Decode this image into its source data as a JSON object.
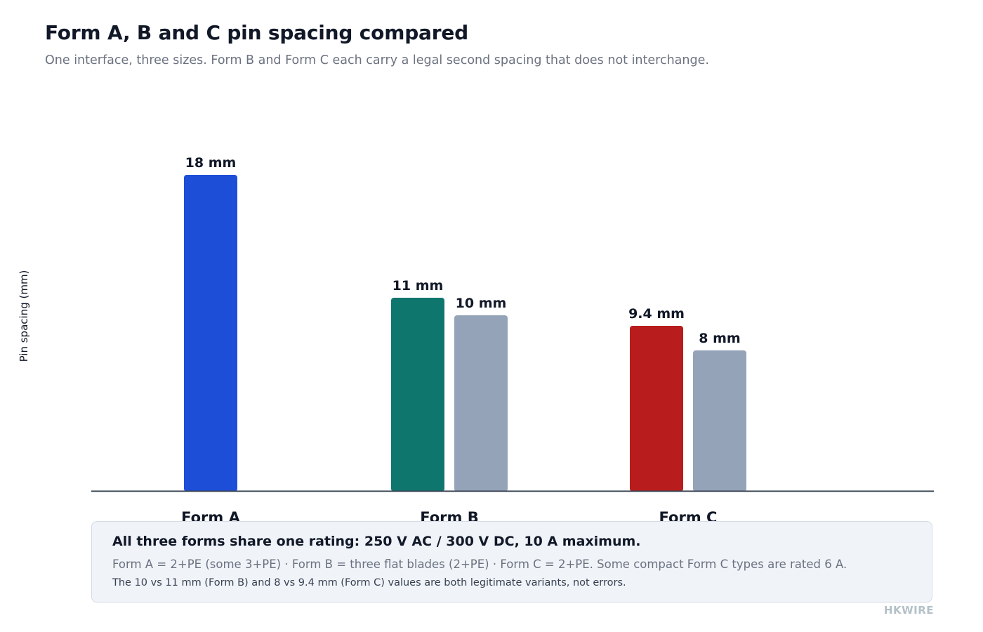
{
  "header": {
    "title": "Form A, B and C pin spacing compared",
    "subtitle": "One interface, three sizes. Form B and Form C each carry a legal second spacing that does not interchange."
  },
  "chart_data": {
    "type": "bar",
    "title": "Form A, B and C pin spacing compared",
    "subtitle": "One interface, three sizes. Form B and Form C each carry a legal second spacing that does not interchange.",
    "xlabel": "",
    "ylabel": "Pin spacing (mm)",
    "unit": "mm",
    "ylim": [
      0,
      20
    ],
    "grid": false,
    "categories": [
      "Form A",
      "Form B",
      "Form C"
    ],
    "groups": [
      {
        "category": "Form A",
        "bars": [
          {
            "value": 18,
            "label": "18 mm",
            "color": "#1d4ed8"
          }
        ]
      },
      {
        "category": "Form B",
        "bars": [
          {
            "value": 11,
            "label": "11 mm",
            "color": "#0f766e"
          },
          {
            "value": 10,
            "label": "10 mm",
            "color": "#94a3b8"
          }
        ]
      },
      {
        "category": "Form C",
        "bars": [
          {
            "value": 9.4,
            "label": "9.4 mm",
            "color": "#b91c1c"
          },
          {
            "value": 8,
            "label": "8 mm",
            "color": "#94a3b8"
          }
        ]
      }
    ]
  },
  "note": {
    "headline": "All three forms share one rating: 250 V AC / 300 V DC, 10 A maximum.",
    "line1": "Form A = 2+PE (some 3+PE) · Form B = three flat blades (2+PE) · Form C = 2+PE. Some compact Form C types are rated 6 A.",
    "line2": "The 10 vs 11 mm (Form B) and 8 vs 9.4 mm (Form C) values are both legitimate variants, not errors."
  },
  "brand": "HKWIRE",
  "colors": {
    "axis": "#374151",
    "text": "#111827",
    "muted": "#6b7280"
  }
}
